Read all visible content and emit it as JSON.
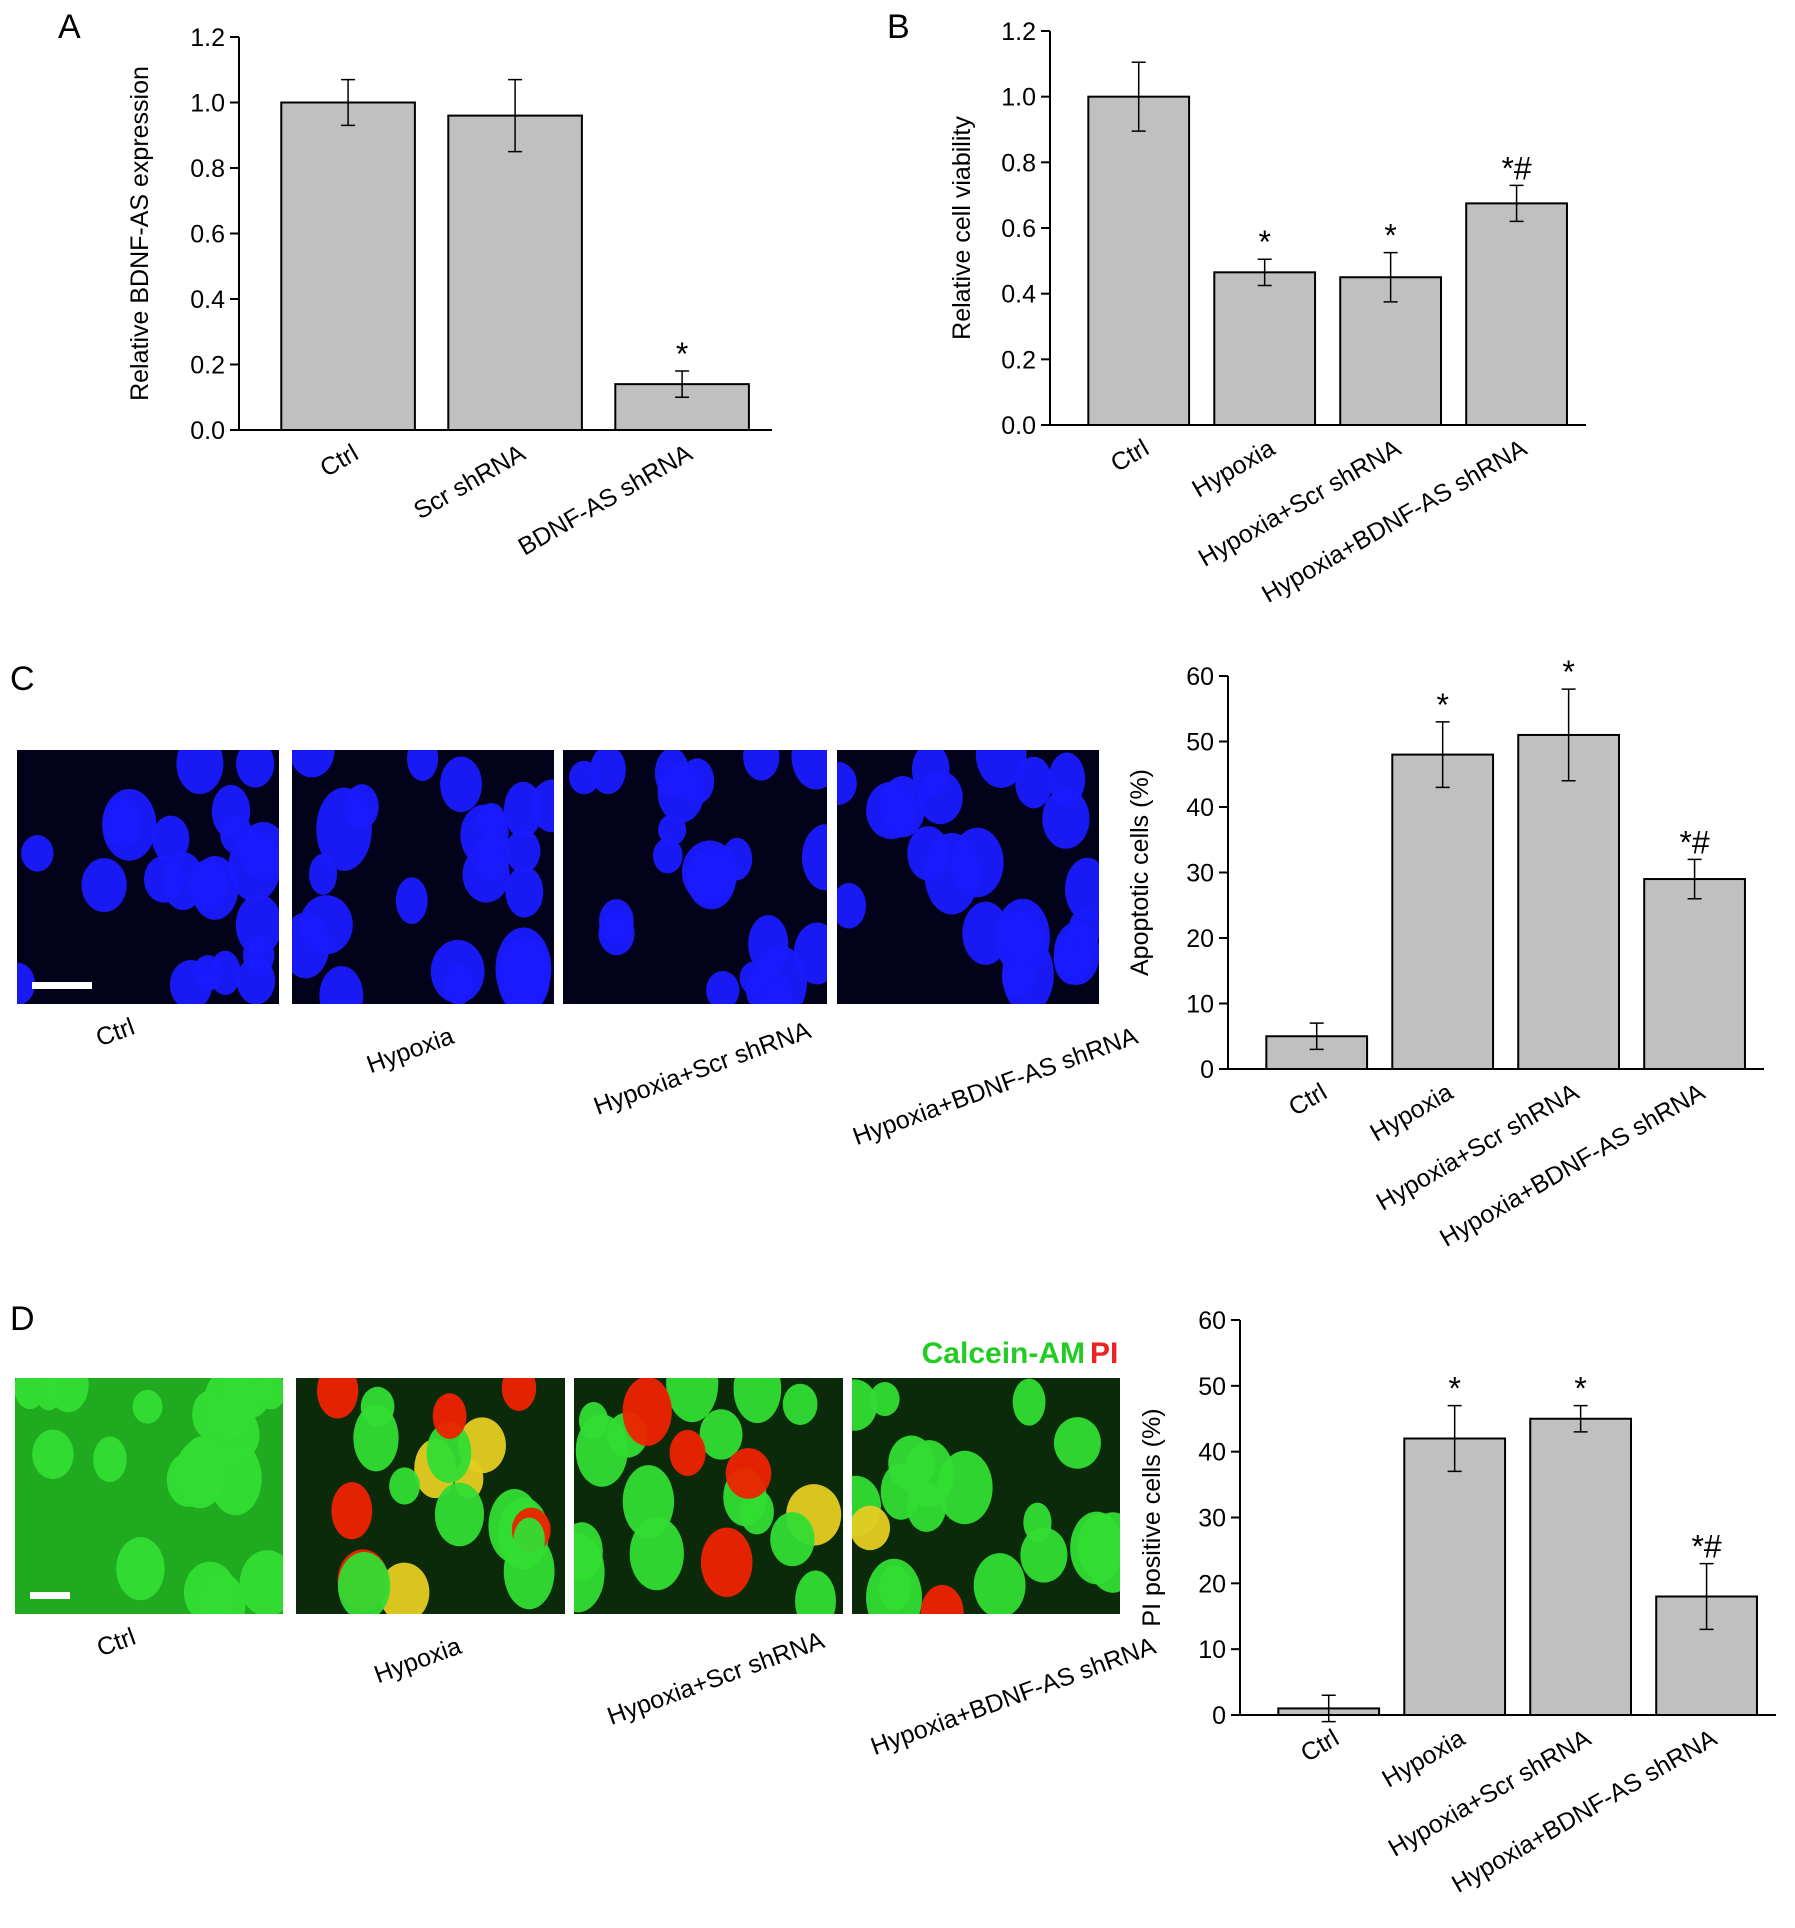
{
  "chart_data": [
    {
      "type": "bar",
      "panel": "A",
      "ylabel": "Relative BDNF-AS expression",
      "categories": [
        "Ctrl",
        "Scr shRNA",
        "BDNF-AS shRNA"
      ],
      "values": [
        1.0,
        0.96,
        0.14
      ],
      "errors": [
        0.07,
        0.11,
        0.04
      ],
      "annotations": [
        null,
        null,
        "*"
      ],
      "color": "#c0c0c0",
      "ylim": [
        0,
        1.2
      ],
      "yticks": [
        {
          "value": 0,
          "label": "0.0"
        },
        0.2,
        0.4,
        0.6,
        0.8,
        {
          "value": 1,
          "label": "1.0"
        },
        1.2
      ]
    },
    {
      "type": "bar",
      "panel": "B",
      "ylabel": "Relative cell viability",
      "categories": [
        "Ctrl",
        "Hypoxia",
        "Hypoxia+Scr shRNA",
        "Hypoxia+BDNF-AS shRNA"
      ],
      "values": [
        1.0,
        0.465,
        0.45,
        0.675
      ],
      "errors": [
        0.105,
        0.04,
        0.075,
        0.055
      ],
      "annotations": [
        null,
        "*",
        "*",
        "*#"
      ],
      "color": "#c0c0c0",
      "ylim": [
        0,
        1.2
      ],
      "yticks": [
        {
          "value": 0,
          "label": "0.0"
        },
        0.2,
        0.4,
        0.6,
        0.8,
        {
          "value": 1,
          "label": "1.0"
        },
        1.2
      ]
    },
    {
      "type": "bar",
      "panel": "C",
      "ylabel": "Apoptotic cells (%)",
      "categories": [
        "Ctrl",
        "Hypoxia",
        "Hypoxia+Scr shRNA",
        "Hypoxia+BDNF-AS shRNA"
      ],
      "values": [
        5,
        48,
        51,
        29
      ],
      "errors": [
        2,
        5,
        7,
        3
      ],
      "annotations": [
        null,
        "*",
        "*",
        "*#"
      ],
      "color": "#c0c0c0",
      "ylim": [
        0,
        60
      ],
      "yticks": [
        0,
        10,
        20,
        30,
        40,
        50,
        60
      ]
    },
    {
      "type": "bar",
      "panel": "D",
      "ylabel": "PI positive cells (%)",
      "categories": [
        "Ctrl",
        "Hypoxia",
        "Hypoxia+Scr shRNA",
        "Hypoxia+BDNF-AS shRNA"
      ],
      "values": [
        1,
        42,
        45,
        18
      ],
      "errors": [
        2,
        5,
        2,
        5
      ],
      "annotations": [
        null,
        "*",
        "*",
        "*#"
      ],
      "color": "#c0c0c0",
      "ylim": [
        0,
        60
      ],
      "yticks": [
        0,
        10,
        20,
        30,
        40,
        50,
        60
      ]
    }
  ],
  "images": {
    "C": {
      "labels": [
        "Ctrl",
        "Hypoxia",
        "Hypoxia+Scr shRNA",
        "Hypoxia+BDNF-AS shRNA"
      ]
    },
    "D": {
      "labels": [
        "Ctrl",
        "Hypoxia",
        "Hypoxia+Scr shRNA",
        "Hypoxia+BDNF-AS shRNA"
      ],
      "stain_live": "Calcein-AM",
      "stain_dead": "PI"
    }
  }
}
